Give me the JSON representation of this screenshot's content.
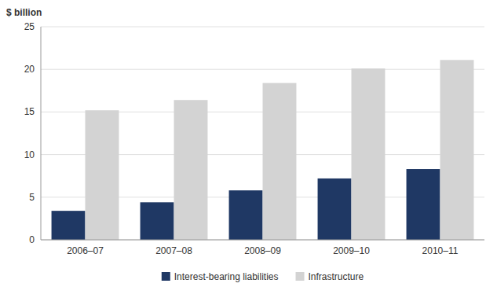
{
  "chart_data": {
    "type": "bar",
    "ylabel": "$ billion",
    "categories": [
      "2006–07",
      "2007–08",
      "2008–09",
      "2009–10",
      "2010–11"
    ],
    "series": [
      {
        "name": "Interest-bearing liabilities",
        "color": "#1F3864",
        "values": [
          3.4,
          4.4,
          5.8,
          7.2,
          8.3
        ]
      },
      {
        "name": "Infrastructure",
        "color": "#D3D3D3",
        "values": [
          15.2,
          16.4,
          18.4,
          20.1,
          21.1
        ]
      }
    ],
    "ylim": [
      0,
      25
    ],
    "yticks": [
      0,
      5,
      10,
      15,
      20,
      25
    ],
    "grid": true,
    "legend": "bottom"
  }
}
